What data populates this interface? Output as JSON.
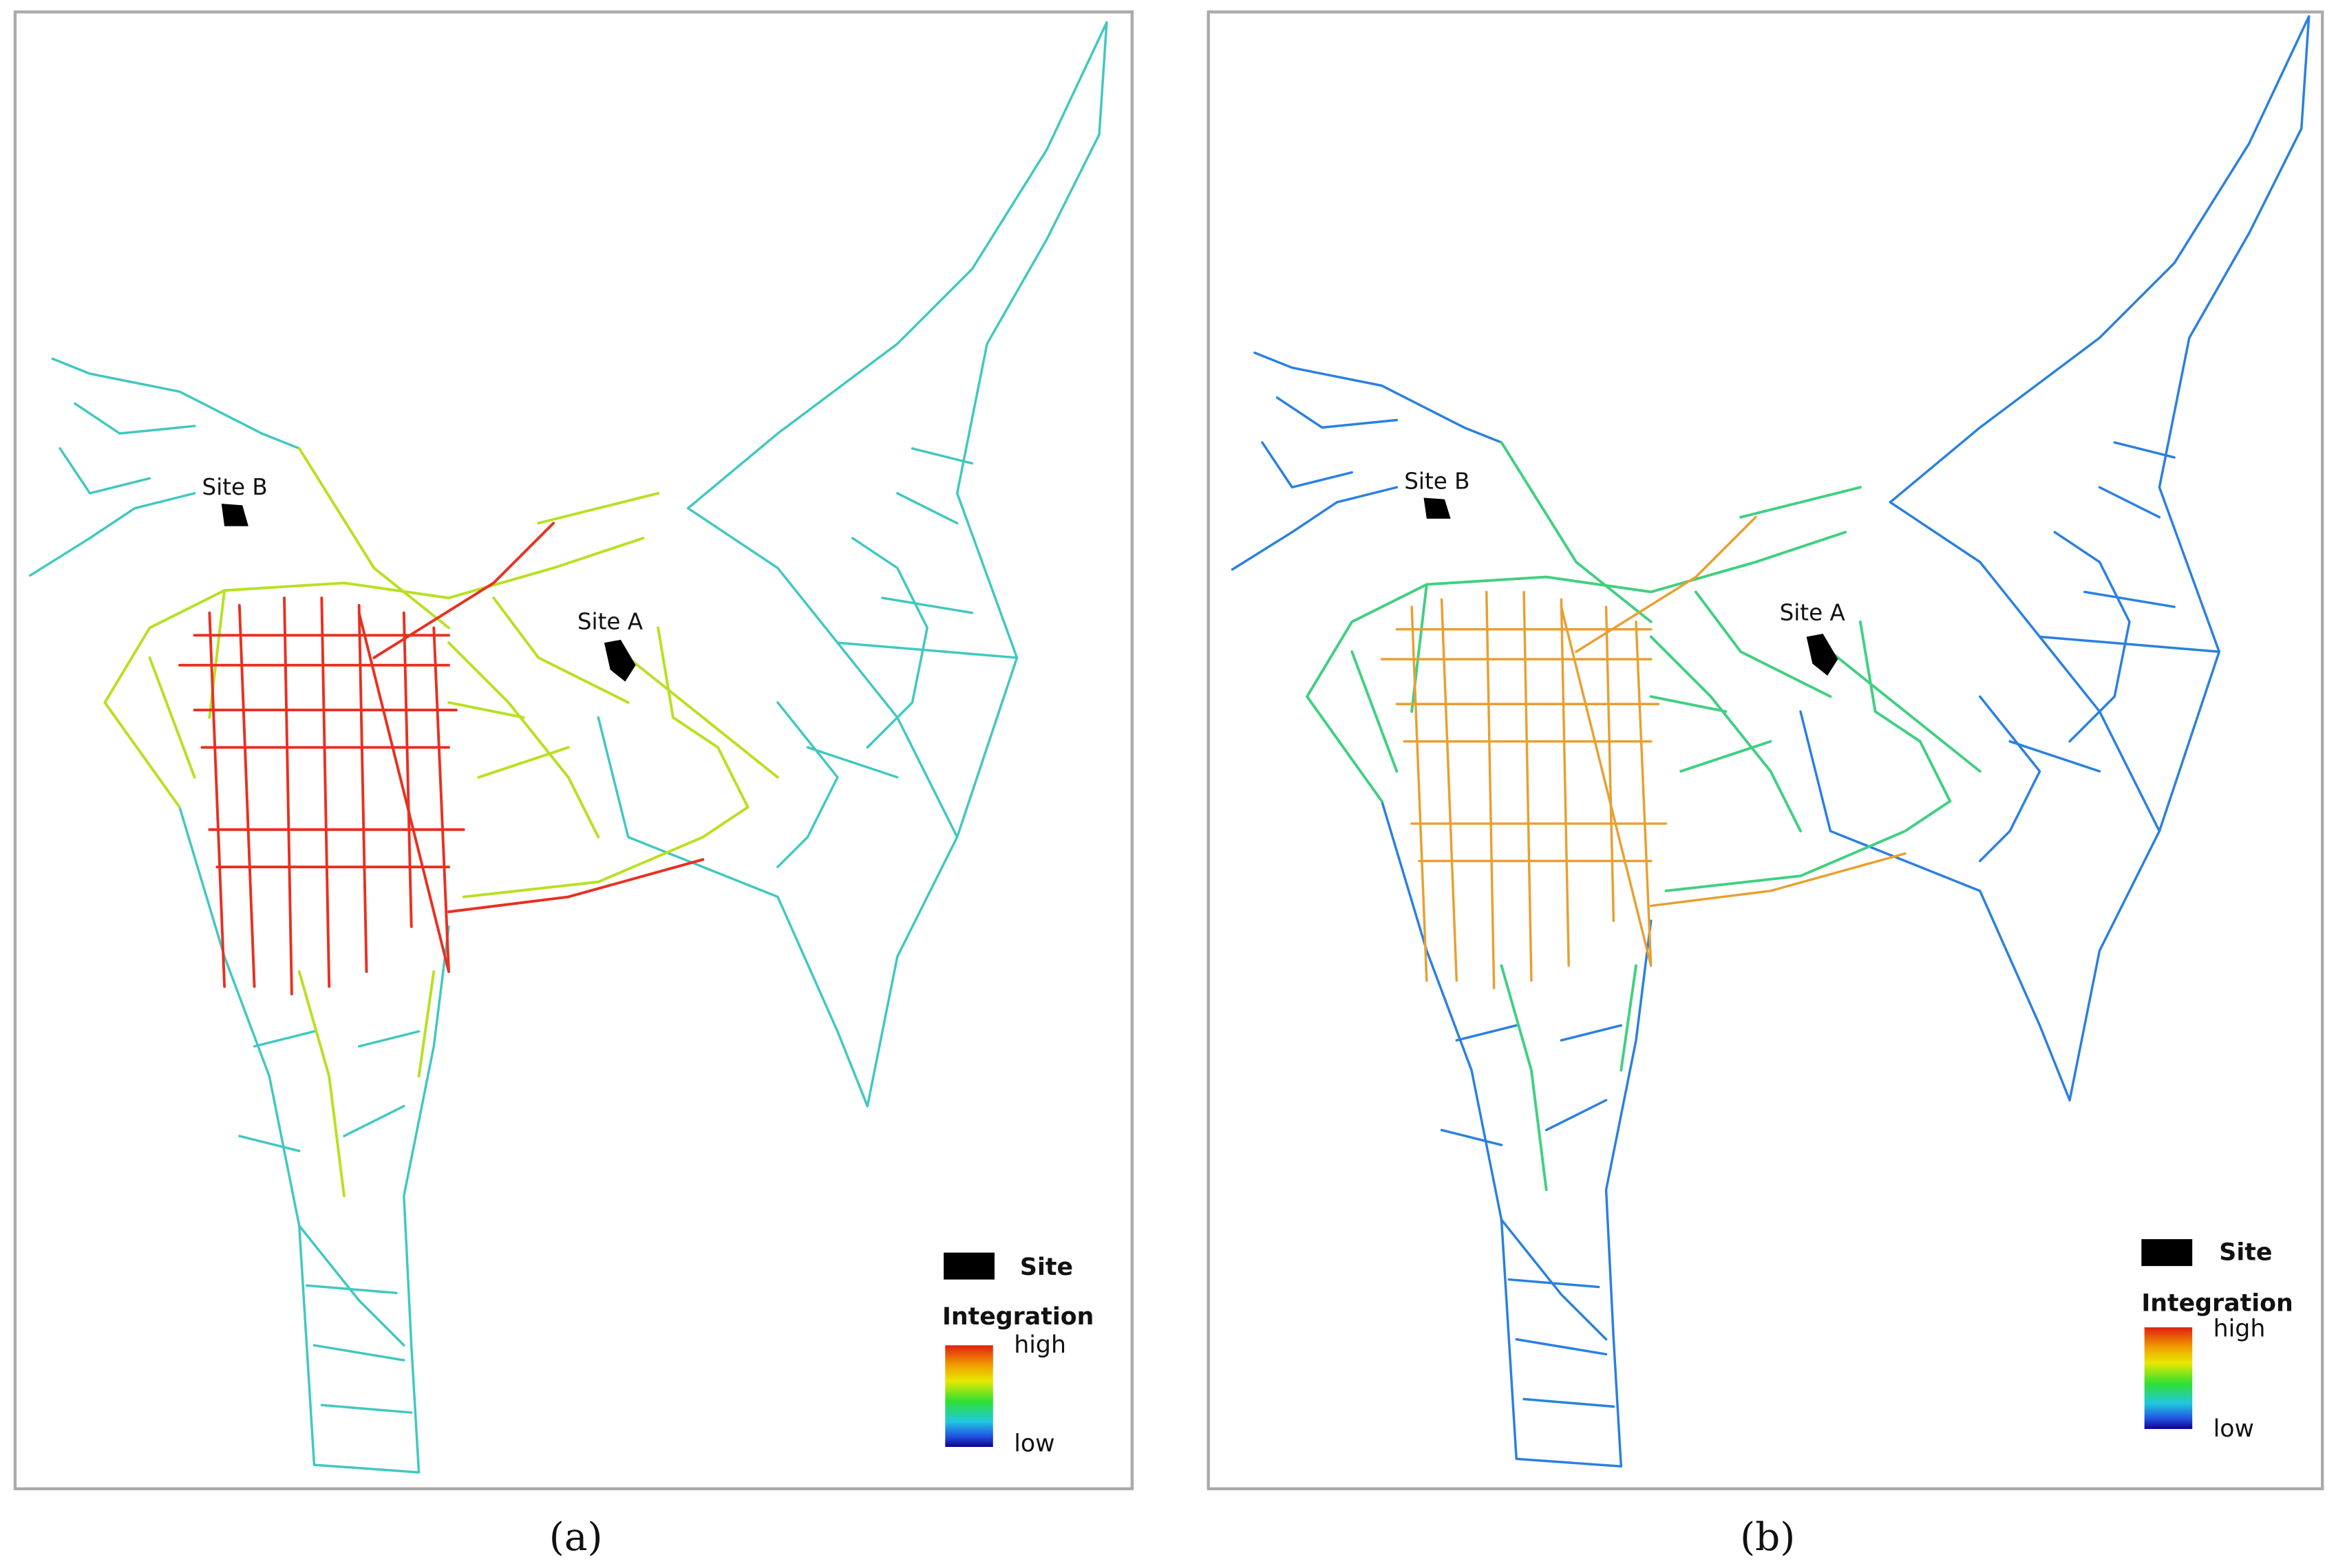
{
  "panels": [
    {
      "label": "(a)",
      "sites": [
        "Site B",
        "Site A"
      ],
      "legend": {
        "site": "Site",
        "title": "Integration",
        "high": "high",
        "low": "low"
      }
    },
    {
      "label": "(b)",
      "sites": [
        "Site B",
        "Site A"
      ],
      "legend": {
        "site": "Site",
        "title": "Integration",
        "high": "high",
        "low": "low"
      }
    }
  ]
}
